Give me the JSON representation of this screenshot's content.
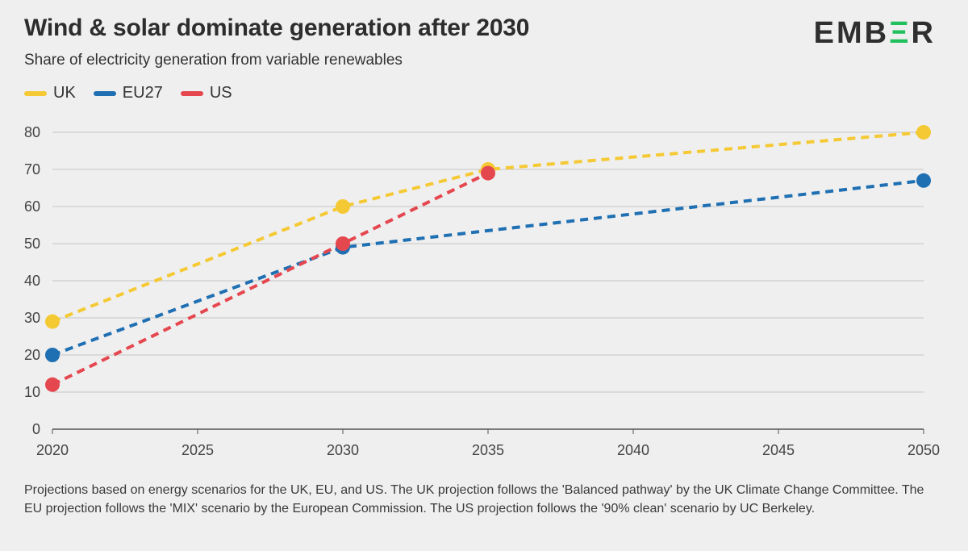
{
  "header": {
    "title": "Wind & solar dominate generation after 2030",
    "subtitle": "Share of electricity generation from variable renewables",
    "logo_text": "EMBER"
  },
  "colors": {
    "UK": "#f5c934",
    "EU27": "#1f6fb3",
    "US": "#e5474f",
    "grid": "#c4c4c4",
    "background": "#efefef",
    "logo_accent": "#20c05c"
  },
  "legend": [
    {
      "name": "UK",
      "color": "#f5c934"
    },
    {
      "name": "EU27",
      "color": "#1f6fb3"
    },
    {
      "name": "US",
      "color": "#e5474f"
    }
  ],
  "chart_data": {
    "type": "line",
    "title": "Wind & solar dominate generation after 2030",
    "subtitle": "Share of electricity generation from variable renewables",
    "xlabel": "",
    "ylabel": "",
    "xlim": [
      2020,
      2050
    ],
    "ylim": [
      0,
      80
    ],
    "x_ticks": [
      2020,
      2025,
      2030,
      2035,
      2040,
      2045,
      2050
    ],
    "y_ticks": [
      0,
      10,
      20,
      30,
      40,
      50,
      60,
      70,
      80
    ],
    "grid": true,
    "legend_position": "top-left",
    "line_style": "dashed",
    "series": [
      {
        "name": "UK",
        "color": "#f5c934",
        "x": [
          2020,
          2030,
          2035,
          2050
        ],
        "values": [
          29,
          60,
          70,
          80
        ]
      },
      {
        "name": "EU27",
        "color": "#1f6fb3",
        "x": [
          2020,
          2030,
          2050
        ],
        "values": [
          20,
          49,
          67
        ]
      },
      {
        "name": "US",
        "color": "#e5474f",
        "x": [
          2020,
          2030,
          2035
        ],
        "values": [
          12,
          50,
          69
        ]
      }
    ]
  },
  "footnote": "Projections based on energy scenarios for the UK, EU, and US. The UK projection follows the 'Balanced pathway' by the UK Climate Change Committee. The EU projection follows the 'MIX' scenario by the European Commission. The US projection follows the '90% clean' scenario by UC Berkeley."
}
